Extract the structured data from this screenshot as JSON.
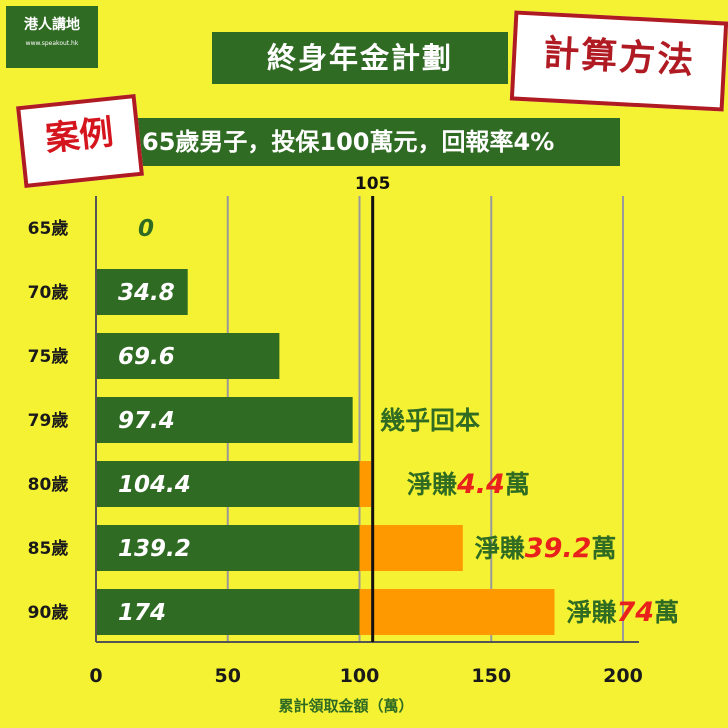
{
  "logo": {
    "brand": "港人講地",
    "tagline": "",
    "url": "www.speakout.hk"
  },
  "title": "終身年金計劃",
  "stamp": "計算方法",
  "case_label": "案例",
  "case_text": "65歲男子，投保100萬元，回報率4%",
  "chart_data": {
    "type": "bar",
    "orientation": "horizontal",
    "stacked": true,
    "categories": [
      "65歲",
      "70歲",
      "75歲",
      "79歲",
      "80歲",
      "85歲",
      "90歲"
    ],
    "totals": [
      0,
      34.8,
      69.6,
      97.4,
      104.4,
      139.2,
      174
    ],
    "total_labels": [
      "0",
      "34.8",
      "69.6",
      "97.4",
      "104.4",
      "139.2",
      "174"
    ],
    "series": [
      {
        "values": [
          0,
          34.8,
          69.6,
          97.4,
          100,
          100,
          100
        ],
        "color": "#2f6b22"
      },
      {
        "values": [
          0,
          0,
          0,
          0,
          4.4,
          39.2,
          74
        ],
        "color": "#ff9900"
      }
    ],
    "xlim": [
      0,
      200
    ],
    "xticks": [
      0,
      50,
      100,
      150,
      200
    ],
    "xlabel": "累計領取金額（萬）",
    "reference_line": {
      "value": 105,
      "label": "105"
    },
    "grid": true,
    "annotations": [
      {
        "category_index": 3,
        "parts": [
          {
            "text": "幾乎回本",
            "color": "#2f6b22"
          }
        ]
      },
      {
        "category_index": 4,
        "parts": [
          {
            "text": "淨賺",
            "color": "#2f6b22"
          },
          {
            "text": "4.4",
            "color": "#e8211c"
          },
          {
            "text": "萬",
            "color": "#2f6b22"
          }
        ]
      },
      {
        "category_index": 5,
        "parts": [
          {
            "text": "淨賺",
            "color": "#2f6b22"
          },
          {
            "text": "39.2",
            "color": "#e8211c"
          },
          {
            "text": "萬",
            "color": "#2f6b22"
          }
        ]
      },
      {
        "category_index": 6,
        "parts": [
          {
            "text": "淨賺",
            "color": "#2f6b22"
          },
          {
            "text": "74",
            "color": "#e8211c"
          },
          {
            "text": "萬",
            "color": "#2f6b22"
          }
        ]
      }
    ]
  }
}
